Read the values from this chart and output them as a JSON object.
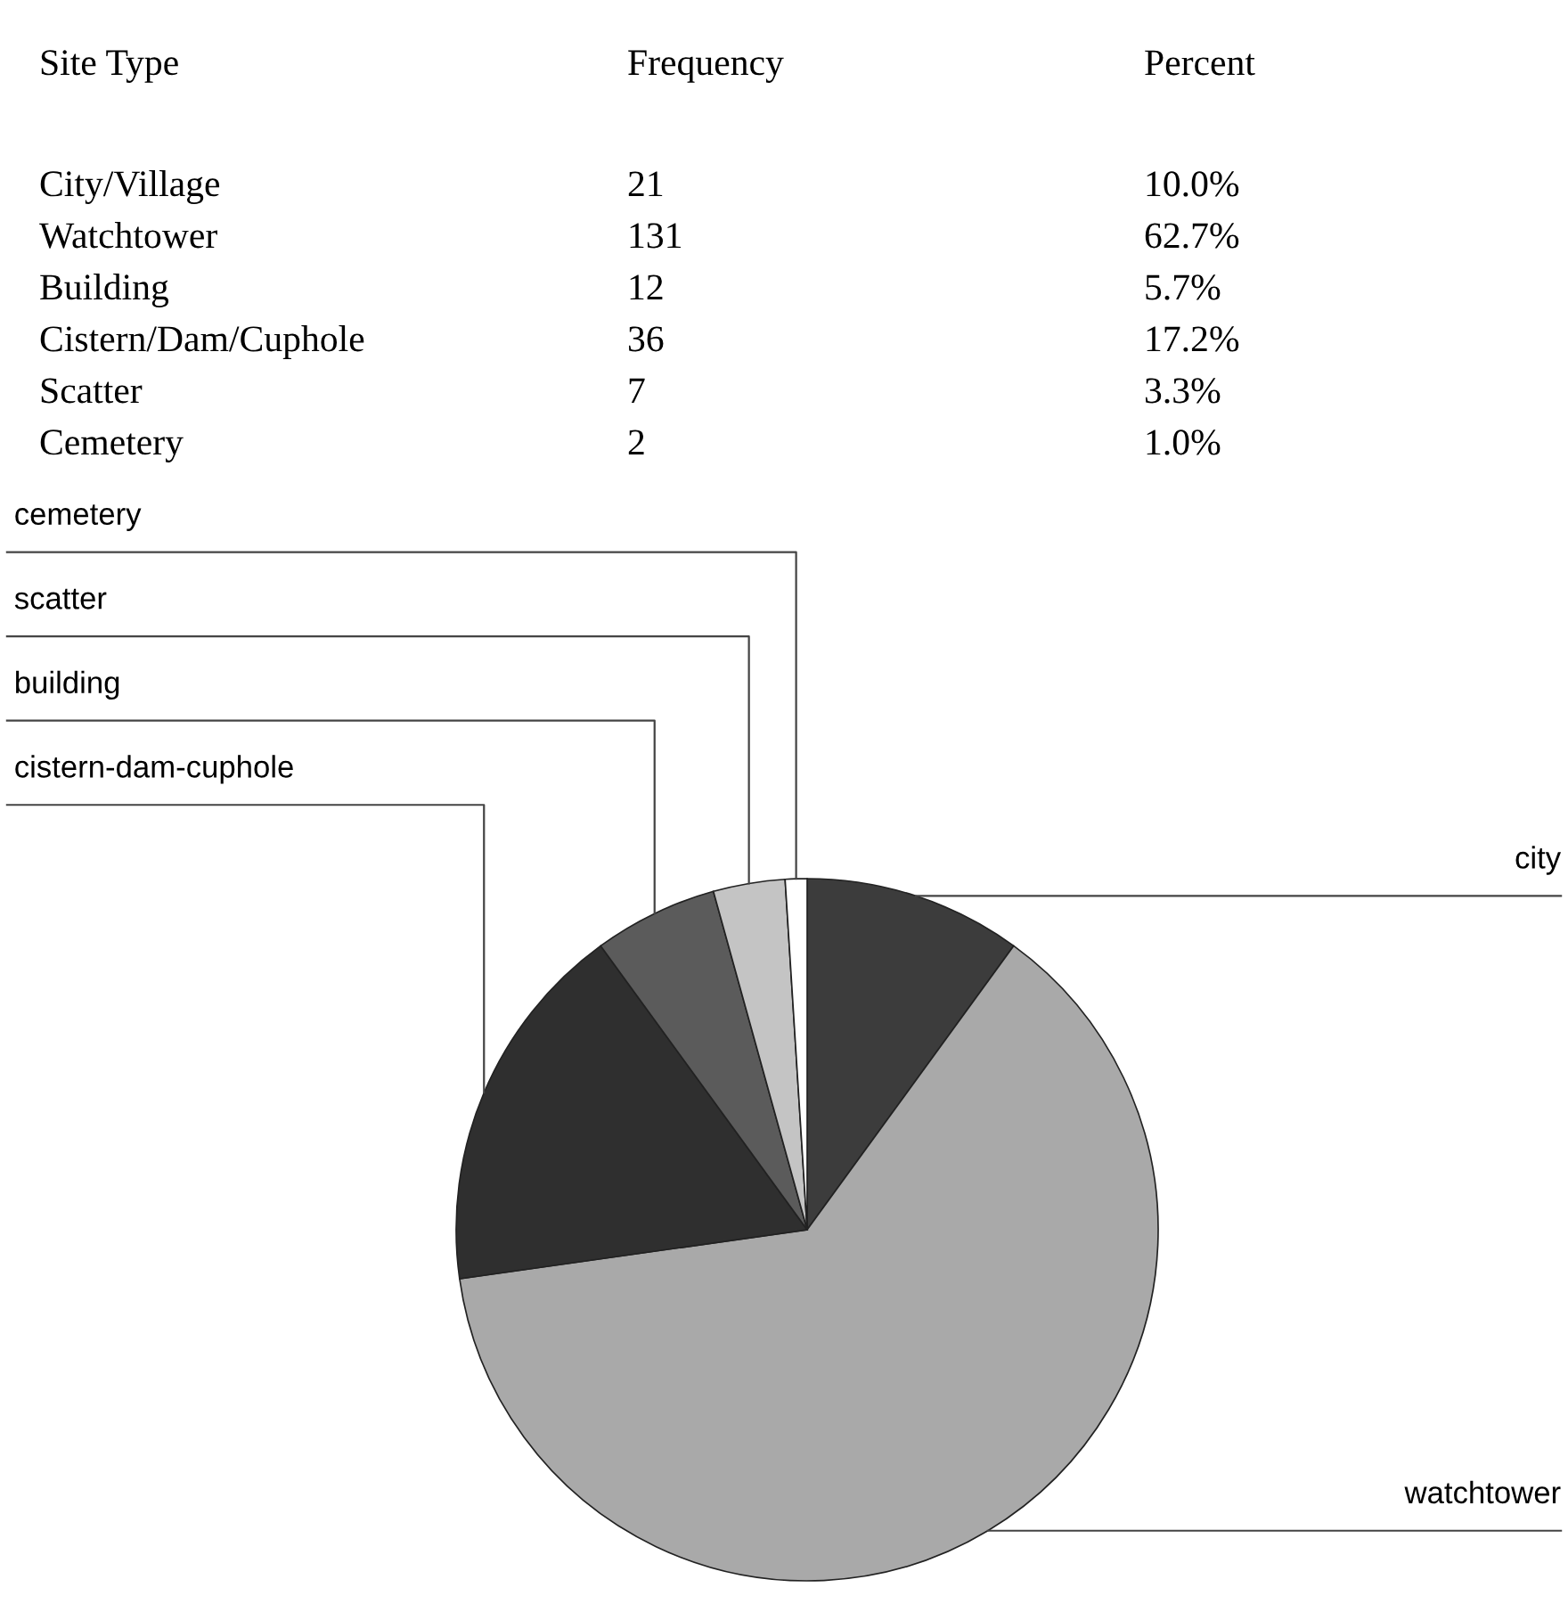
{
  "chart_data": [
    {
      "type": "other",
      "annotations": [
        "Site Type",
        "Frequency",
        "Percent",
        "City/Village",
        "21",
        "10.0%",
        "Watchtower",
        "131",
        "62.7%",
        "Building",
        "12",
        "5.7%",
        "Cistern/Dam/Cuphole",
        "36",
        "17.2%",
        "Scatter",
        "7",
        "3.3%",
        "Cemetery",
        "2",
        "1.0%"
      ]
    },
    {
      "type": "pie",
      "categories": [
        "city",
        "watchtower",
        "cistern-dam-cuphole",
        "building",
        "scatter",
        "cemetery"
      ],
      "values": [
        10.0,
        62.7,
        17.2,
        5.7,
        3.3,
        1.0
      ],
      "colors": [
        "#3c3c3c",
        "#a9a9a9",
        "#2f2f2f",
        "#5b5b5b",
        "#c4c4c4",
        "#ffffff"
      ]
    }
  ]
}
